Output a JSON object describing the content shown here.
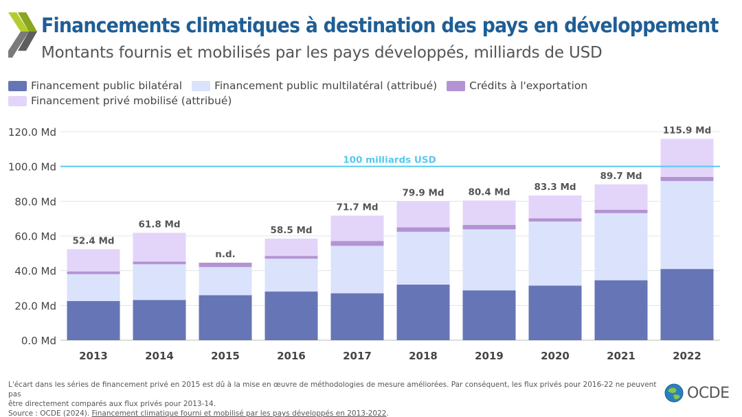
{
  "header": {
    "title": "Financements climatiques à destination des pays en développement",
    "subtitle": "Montants fournis et mobilisés par les pays développés, milliards de USD"
  },
  "legend": {
    "items": [
      {
        "label": "Financement public bilatéral",
        "color": "#6675b5"
      },
      {
        "label": "Financement public multilatéral (attribué)",
        "color": "#dae3fb"
      },
      {
        "label": "Crédits à l'exportation",
        "color": "#b393d4"
      },
      {
        "label": "Financement privé mobilisé (attribué)",
        "color": "#e3d5fa"
      }
    ]
  },
  "chart_data": {
    "type": "bar",
    "stacked": true,
    "categories": [
      "2013",
      "2014",
      "2015",
      "2016",
      "2017",
      "2018",
      "2019",
      "2020",
      "2021",
      "2022"
    ],
    "series": [
      {
        "name": "Financement public bilatéral",
        "color": "#6675b5",
        "values": [
          22.5,
          23.1,
          25.9,
          28.0,
          27.0,
          32.0,
          28.7,
          31.4,
          34.5,
          41.0
        ]
      },
      {
        "name": "Financement public multilatéral (attribué)",
        "color": "#dae3fb",
        "values": [
          15.5,
          20.6,
          16.2,
          18.9,
          27.3,
          30.4,
          35.1,
          36.9,
          38.6,
          50.6
        ]
      },
      {
        "name": "Crédits à l'exportation",
        "color": "#b393d4",
        "values": [
          1.6,
          1.6,
          2.5,
          1.6,
          2.8,
          2.6,
          2.6,
          1.9,
          2.0,
          2.4
        ]
      },
      {
        "name": "Financement privé mobilisé (attribué)",
        "color": "#e3d5fa",
        "values": [
          12.8,
          16.5,
          0,
          10.0,
          14.6,
          14.9,
          14.0,
          13.1,
          14.6,
          21.9
        ]
      }
    ],
    "totals_labels": [
      "52.4 Md",
      "61.8 Md",
      "n.d.",
      "58.5 Md",
      "71.7 Md",
      "79.9 Md",
      "80.4 Md",
      "83.3 Md",
      "89.7 Md",
      "115.9 Md"
    ],
    "yticks": [
      0,
      20,
      40,
      60,
      80,
      100,
      120
    ],
    "ytick_labels": [
      "0.0 Md",
      "20.0 Md",
      "40.0 Md",
      "60.0 Md",
      "80.0 Md",
      "100.0 Md",
      "120.0 Md"
    ],
    "ylim": [
      0,
      120
    ],
    "grid": true,
    "reference_line": {
      "value": 100,
      "label": "100 milliards USD",
      "color": "#56c8ee"
    }
  },
  "footnote": {
    "line1": "L'écart dans les séries de financement privé en 2015 est dû à la mise en œuvre de méthodologies de mesure améliorées. Par conséquent, les flux privés pour 2016-22 ne peuvent pas",
    "line2": "être directement comparés aux flux privés pour 2013-14.",
    "source_prefix": "Source : OCDE (2024). ",
    "source_link": "Financement climatique fourni et mobilisé par les pays développés en 2013-2022",
    "source_suffix": "."
  },
  "logo": {
    "text": "OCDE",
    "icon": "oecd-globe-icon"
  }
}
